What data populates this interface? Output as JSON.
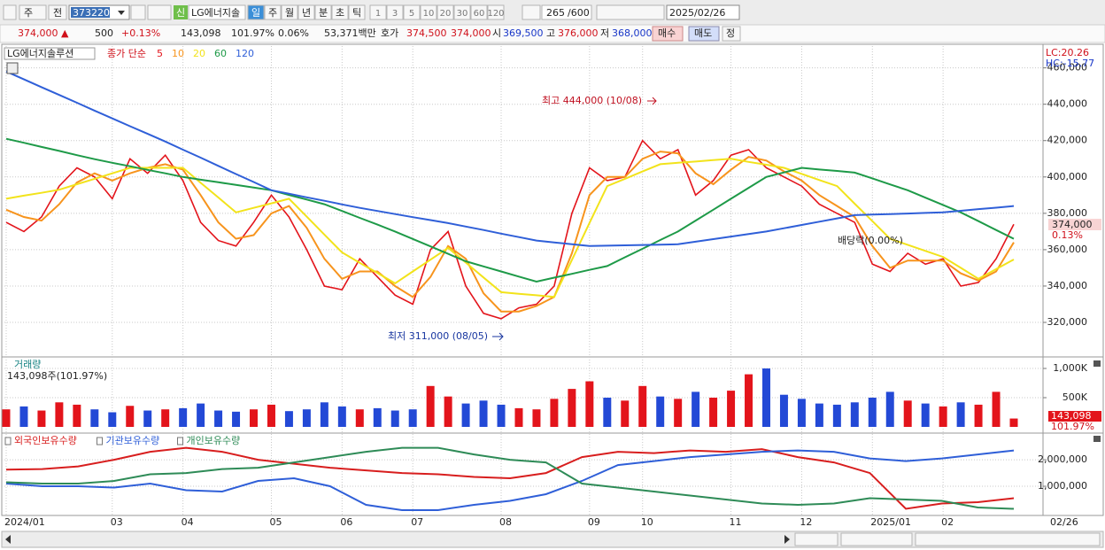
{
  "toolbar": {
    "period_type": "주",
    "prev": "전",
    "code": "373220",
    "new_badge": "신",
    "name": "LG에너지솔",
    "periods": [
      "일",
      "주",
      "월",
      "년",
      "분",
      "초",
      "틱"
    ],
    "intervals": [
      "1",
      "3",
      "5",
      "10",
      "20",
      "30",
      "60",
      "120"
    ],
    "count": "265",
    "max": "/600",
    "date": "2025/02/26"
  },
  "quote": {
    "price": "374,000 ▲",
    "change": "500",
    "change_pct": "+0.13%",
    "volume": "143,098",
    "volume_ratio": "101.97%",
    "turnover": "0.06%",
    "amount": "53,371백만",
    "bid_label": "호가",
    "ask": "374,500",
    "bid": "374,000",
    "open_label": "시",
    "open": "369,500",
    "high_label": "고",
    "high": "376,000",
    "low_label": "저",
    "low": "368,000",
    "buy": "매수",
    "sell": "매도",
    "correct": "정"
  },
  "chart_data": [
    {
      "type": "line",
      "title": "LG에너지솔루션",
      "legend_title": "종가 단순",
      "categories": [
        "2024/01",
        null,
        null,
        null,
        null,
        null,
        "03",
        null,
        null,
        null,
        "04",
        null,
        null,
        null,
        null,
        "05",
        null,
        null,
        null,
        "06",
        null,
        null,
        null,
        "07",
        null,
        null,
        null,
        null,
        "08",
        null,
        null,
        null,
        null,
        "09",
        null,
        null,
        "10",
        null,
        null,
        null,
        null,
        "11",
        null,
        null,
        null,
        "12",
        null,
        null,
        null,
        "2025/01",
        null,
        null,
        null,
        "02",
        null,
        null,
        null,
        null
      ],
      "x_end_label": "02/26",
      "series": [
        {
          "name": "5",
          "color": "#e3141b",
          "values": [
            375000,
            370000,
            378000,
            395000,
            405000,
            400000,
            388000,
            410000,
            402000,
            412000,
            398000,
            375000,
            365000,
            362000,
            375000,
            390000,
            378000,
            360000,
            340000,
            338000,
            355000,
            345000,
            335000,
            330000,
            360000,
            370000,
            340000,
            325000,
            322000,
            328000,
            330000,
            340000,
            380000,
            405000,
            398000,
            400000,
            420000,
            410000,
            415000,
            390000,
            398000,
            412000,
            415000,
            405000,
            400000,
            395000,
            385000,
            380000,
            375000,
            352000,
            348000,
            358000,
            352000,
            355000,
            340000,
            342000,
            355000,
            374000
          ]
        },
        {
          "name": "10",
          "color": "#f7941d",
          "values": [
            382000,
            378000,
            376000,
            385000,
            397000,
            402000,
            398000,
            402000,
            405000,
            407000,
            404000,
            390000,
            375000,
            366000,
            368000,
            380000,
            384000,
            372000,
            355000,
            344000,
            348000,
            348000,
            340000,
            334000,
            345000,
            362000,
            355000,
            336000,
            326000,
            326000,
            329000,
            334000,
            358000,
            390000,
            400000,
            400000,
            410000,
            414000,
            413000,
            402000,
            396000,
            404000,
            411000,
            409000,
            403000,
            398000,
            390000,
            384000,
            378000,
            362000,
            350000,
            354000,
            354000,
            354000,
            347000,
            343000,
            348000,
            364000
          ]
        },
        {
          "name": "20",
          "color": "#f2e31b",
          "values": [
            388000,
            389700,
            391300,
            393000,
            396000,
            399000,
            402000,
            405000,
            405000,
            405000,
            405000,
            396800,
            388700,
            380500,
            383000,
            385500,
            388000,
            378200,
            368300,
            358500,
            352800,
            347200,
            341500,
            348000,
            354500,
            361000,
            352900,
            344700,
            336600,
            335700,
            334900,
            334000,
            354300,
            374700,
            395000,
            399000,
            403000,
            407000,
            407800,
            408500,
            409300,
            410000,
            408300,
            406700,
            405000,
            401700,
            398300,
            395000,
            385300,
            375700,
            366000,
            362700,
            359300,
            356000,
            350000,
            344000,
            349300,
            354600
          ]
        },
        {
          "name": "60",
          "color": "#1e9a48",
          "values": [
            421000,
            418800,
            416500,
            414300,
            412000,
            409800,
            407800,
            405900,
            403900,
            402000,
            400000,
            398500,
            397100,
            395600,
            394200,
            392700,
            390100,
            387600,
            385000,
            381300,
            377500,
            373800,
            370000,
            365900,
            361800,
            357700,
            353600,
            350800,
            348000,
            345200,
            342400,
            344600,
            346700,
            348900,
            351000,
            355800,
            360500,
            365300,
            370000,
            376000,
            382000,
            388000,
            394000,
            400000,
            402500,
            405000,
            404100,
            403300,
            402400,
            399200,
            395900,
            392700,
            388600,
            384600,
            380500,
            375700,
            370800,
            366000
          ]
        },
        {
          "name": "120",
          "color": "#2f5fd8",
          "values": [
            458000,
            453700,
            449400,
            445100,
            440800,
            436500,
            432200,
            427900,
            423700,
            419500,
            415000,
            410600,
            406100,
            401600,
            397200,
            392700,
            390800,
            388800,
            386900,
            384900,
            383000,
            381300,
            379600,
            377900,
            376300,
            374600,
            372700,
            370800,
            368800,
            366900,
            365000,
            364000,
            363000,
            362000,
            362200,
            362400,
            362600,
            362800,
            363000,
            364400,
            365800,
            367200,
            368600,
            370000,
            371800,
            373600,
            375400,
            377200,
            379000,
            379300,
            379600,
            379900,
            380200,
            380500,
            381400,
            382300,
            383100,
            384000
          ]
        }
      ],
      "ylim": [
        301500,
        472000
      ],
      "yticks": [
        {
          "value": 320000,
          "label": "320,000"
        },
        {
          "value": 340000,
          "label": "340,000"
        },
        {
          "value": 360000,
          "label": "360,000"
        },
        {
          "value": 380000,
          "label": "380,000"
        },
        {
          "value": 400000,
          "label": "400,000"
        },
        {
          "value": 420000,
          "label": "420,000"
        },
        {
          "value": 440000,
          "label": "440,000"
        },
        {
          "value": 460000,
          "label": "460,000"
        }
      ],
      "grid": true,
      "annotations": [
        "최고 444,000 (10/08)",
        "최저 311,000 (08/05)",
        "배당락(0.00%)"
      ],
      "lc": "LC:20.26",
      "hc": "HC:-15.77",
      "last_tag": "374,000",
      "last_tag_pct": "0.13%"
    },
    {
      "type": "bar",
      "title": "거래량",
      "subtitle": "143,098주(101.97%)",
      "values": [
        300000,
        350000,
        280000,
        420000,
        380000,
        300000,
        250000,
        360000,
        280000,
        300000,
        320000,
        400000,
        280000,
        260000,
        300000,
        380000,
        270000,
        300000,
        420000,
        350000,
        300000,
        320000,
        280000,
        300000,
        700000,
        520000,
        400000,
        450000,
        380000,
        320000,
        300000,
        480000,
        650000,
        780000,
        500000,
        450000,
        700000,
        520000,
        480000,
        600000,
        500000,
        620000,
        900000,
        1000000,
        550000,
        480000,
        400000,
        380000,
        420000,
        500000,
        600000,
        450000,
        400000,
        350000,
        420000,
        380000,
        600000,
        143098
      ],
      "up_color": "#e3141b",
      "down_color": "#2349d6",
      "ylim": [
        0,
        1167000
      ],
      "yticks": [
        {
          "value": 500000,
          "label": "500K"
        },
        {
          "value": 1000000,
          "label": "1,000K"
        }
      ],
      "grid": true,
      "tag": "143,098",
      "tag_pct": "101.97%"
    },
    {
      "type": "line",
      "series": [
        {
          "name": "외국인보유수량",
          "color": "#d81e1e",
          "values": [
            1630000,
            1650000,
            1750000,
            2000000,
            2300000,
            2450000,
            2300000,
            2000000,
            1850000,
            1700000,
            1600000,
            1500000,
            1450000,
            1350000,
            1300000,
            1500000,
            2100000,
            2300000,
            2250000,
            2350000,
            2300000,
            2400000,
            2100000,
            1900000,
            1500000,
            150000,
            350000,
            400000,
            550000
          ]
        },
        {
          "name": "기관보유수량",
          "color": "#2f5fd8",
          "values": [
            1100000,
            1000000,
            1000000,
            950000,
            1100000,
            850000,
            800000,
            1200000,
            1300000,
            1000000,
            300000,
            100000,
            100000,
            300000,
            450000,
            700000,
            1200000,
            1800000,
            1950000,
            2100000,
            2200000,
            2300000,
            2350000,
            2300000,
            2050000,
            1950000,
            2050000,
            2200000,
            2350000
          ]
        },
        {
          "name": "개인보유수량",
          "color": "#2e8b57",
          "values": [
            1150000,
            1100000,
            1100000,
            1200000,
            1450000,
            1500000,
            1650000,
            1700000,
            1900000,
            2100000,
            2300000,
            2450000,
            2450000,
            2200000,
            2000000,
            1900000,
            1100000,
            950000,
            800000,
            650000,
            500000,
            350000,
            300000,
            350000,
            550000,
            500000,
            450000,
            200000,
            150000
          ]
        }
      ],
      "ylim": [
        0,
        2970000
      ],
      "yticks": [
        {
          "value": 1000000,
          "label": "1,000,000"
        },
        {
          "value": 2000000,
          "label": "2,000,000"
        }
      ],
      "grid": true
    }
  ]
}
